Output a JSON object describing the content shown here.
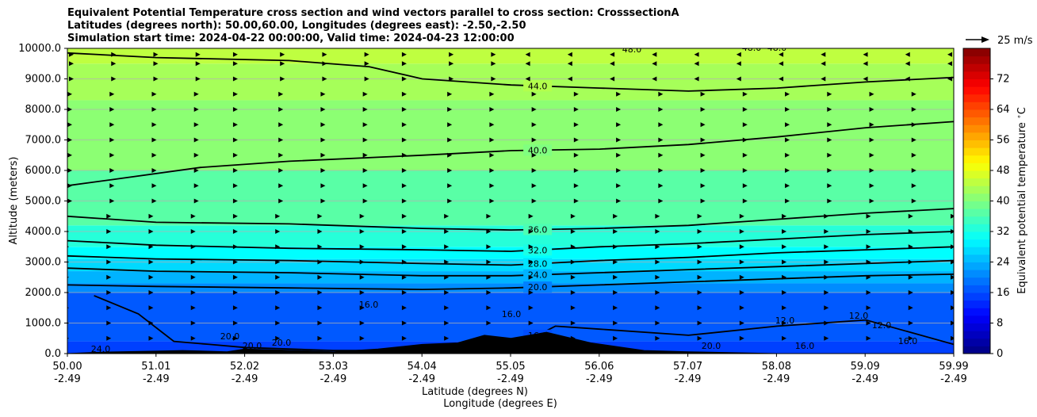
{
  "chart_data": {
    "type": "contour-cross-section",
    "title_lines": [
      "Equivalent Potential Temperature cross section and wind vectors parallel to cross section: CrosssectionA",
      "Latitudes (degrees north): 50.00,60.00, Longitudes (degrees east): -2.50,-2.50",
      "Simulation start time: 2024-04-22 00:00:00, Valid time: 2024-04-23 12:00:00"
    ],
    "ylabel": "Altitude (meters)",
    "xlabel_lat": "Latitude (degrees N)",
    "xlabel_lon": "Longitude (degrees E)",
    "ylim": [
      0,
      10000
    ],
    "xlim": [
      50.0,
      59.99
    ],
    "yticks": [
      "0.0",
      "1000.0",
      "2000.0",
      "3000.0",
      "4000.0",
      "5000.0",
      "6000.0",
      "7000.0",
      "8000.0",
      "9000.0",
      "10000.0"
    ],
    "xticks": [
      {
        "lat": "50.00",
        "lon": "-2.49"
      },
      {
        "lat": "51.01",
        "lon": "-2.49"
      },
      {
        "lat": "52.02",
        "lon": "-2.49"
      },
      {
        "lat": "53.03",
        "lon": "-2.49"
      },
      {
        "lat": "54.04",
        "lon": "-2.49"
      },
      {
        "lat": "55.05",
        "lon": "-2.49"
      },
      {
        "lat": "56.06",
        "lon": "-2.49"
      },
      {
        "lat": "57.07",
        "lon": "-2.49"
      },
      {
        "lat": "58.08",
        "lon": "-2.49"
      },
      {
        "lat": "59.09",
        "lon": "-2.49"
      },
      {
        "lat": "59.99",
        "lon": "-2.49"
      }
    ],
    "colorbar": {
      "label": "Equivalent potential temperature $^\\circ$C",
      "ticks": [
        "0",
        "8",
        "16",
        "24",
        "32",
        "40",
        "48",
        "56",
        "64",
        "72"
      ],
      "min": 0,
      "max": 80
    },
    "filled_bands": [
      {
        "from": 0,
        "to": 400,
        "value": 15
      },
      {
        "from": 400,
        "to": 2000,
        "value": 17
      },
      {
        "from": 2000,
        "to": 2300,
        "value": 21
      },
      {
        "from": 2300,
        "to": 2700,
        "value": 24
      },
      {
        "from": 2700,
        "to": 3100,
        "value": 27
      },
      {
        "from": 3100,
        "to": 3500,
        "value": 30
      },
      {
        "from": 3500,
        "to": 4200,
        "value": 33
      },
      {
        "from": 4200,
        "to": 6000,
        "value": 37
      },
      {
        "from": 6000,
        "to": 8300,
        "value": 41
      },
      {
        "from": 8300,
        "to": 9500,
        "value": 43
      },
      {
        "from": 9500,
        "to": 10000,
        "value": 45
      }
    ],
    "contours": [
      {
        "level": 44,
        "label": "44.0",
        "points": [
          [
            50.0,
            9850
          ],
          [
            51.0,
            9700
          ],
          [
            52.5,
            9600
          ],
          [
            53.4,
            9400
          ],
          [
            54.0,
            9000
          ],
          [
            55.0,
            8800
          ],
          [
            56.0,
            8700
          ],
          [
            57.0,
            8600
          ],
          [
            58.0,
            8700
          ],
          [
            59.0,
            8900
          ],
          [
            59.99,
            9050
          ]
        ]
      },
      {
        "level": 40,
        "label": "40.0",
        "points": [
          [
            50.0,
            5500
          ],
          [
            50.5,
            5700
          ],
          [
            51.5,
            6100
          ],
          [
            52.5,
            6300
          ],
          [
            54.0,
            6500
          ],
          [
            55.0,
            6650
          ],
          [
            56.0,
            6700
          ],
          [
            57.0,
            6850
          ],
          [
            58.0,
            7100
          ],
          [
            59.0,
            7400
          ],
          [
            59.99,
            7600
          ]
        ]
      },
      {
        "level": 36,
        "label": "36.0",
        "points": [
          [
            50.0,
            4500
          ],
          [
            51.0,
            4300
          ],
          [
            52.5,
            4250
          ],
          [
            54.0,
            4100
          ],
          [
            55.0,
            4050
          ],
          [
            56.0,
            4100
          ],
          [
            57.0,
            4200
          ],
          [
            58.0,
            4400
          ],
          [
            59.0,
            4600
          ],
          [
            59.99,
            4750
          ]
        ]
      },
      {
        "level": 32,
        "label": "32.0",
        "points": [
          [
            50.0,
            3700
          ],
          [
            51.0,
            3550
          ],
          [
            52.5,
            3450
          ],
          [
            54.0,
            3400
          ],
          [
            55.0,
            3350
          ],
          [
            56.0,
            3500
          ],
          [
            57.0,
            3600
          ],
          [
            58.0,
            3750
          ],
          [
            59.0,
            3900
          ],
          [
            59.99,
            4000
          ]
        ]
      },
      {
        "level": 28,
        "label": "28.0",
        "points": [
          [
            50.0,
            3200
          ],
          [
            51.0,
            3100
          ],
          [
            52.5,
            3050
          ],
          [
            54.0,
            2950
          ],
          [
            55.0,
            2900
          ],
          [
            56.0,
            3050
          ],
          [
            57.0,
            3150
          ],
          [
            58.0,
            3300
          ],
          [
            59.0,
            3400
          ],
          [
            59.99,
            3500
          ]
        ]
      },
      {
        "level": 24,
        "label": "24.0",
        "points": [
          [
            50.0,
            2800
          ],
          [
            51.0,
            2700
          ],
          [
            52.5,
            2650
          ],
          [
            54.0,
            2550
          ],
          [
            55.0,
            2550
          ],
          [
            56.0,
            2650
          ],
          [
            57.0,
            2750
          ],
          [
            58.0,
            2850
          ],
          [
            59.0,
            2950
          ],
          [
            59.99,
            3050
          ]
        ]
      },
      {
        "level": 20,
        "label": "20.0",
        "points": [
          [
            50.0,
            2250
          ],
          [
            51.0,
            2200
          ],
          [
            52.5,
            2150
          ],
          [
            54.0,
            2100
          ],
          [
            55.0,
            2150
          ],
          [
            56.0,
            2250
          ],
          [
            57.0,
            2350
          ],
          [
            58.0,
            2450
          ],
          [
            59.0,
            2550
          ],
          [
            59.99,
            2600
          ]
        ]
      },
      {
        "level": 16,
        "label": "16.0",
        "points": [
          [
            50.3,
            1900
          ],
          [
            50.8,
            1300
          ],
          [
            51.2,
            400
          ],
          [
            51.6,
            300
          ],
          [
            52.0,
            200
          ],
          [
            53.0,
            100
          ],
          [
            54.0,
            100
          ],
          [
            55.0,
            150
          ],
          [
            55.5,
            900
          ],
          [
            56.0,
            800
          ],
          [
            57.0,
            600
          ],
          [
            58.0,
            900
          ],
          [
            59.0,
            1100
          ],
          [
            59.99,
            300
          ]
        ]
      }
    ],
    "contour_labels_extra": [
      "48.0",
      "48.0",
      "48.0",
      "16.0",
      "12.0",
      "12.0",
      "12.0",
      "16.0",
      "16.0",
      "20.0",
      "20.0",
      "24.0",
      "20.0",
      "20.0",
      "16.0"
    ],
    "wind_reference": "25 m/s",
    "wind_rows": [
      9800,
      9500,
      9000,
      8500,
      8000,
      7500,
      7000,
      6500,
      6000,
      5500,
      5000,
      4500,
      4000,
      3500,
      3000,
      2500,
      2000,
      1500,
      1000,
      500
    ],
    "terrain": [
      [
        50.0,
        0
      ],
      [
        50.4,
        50
      ],
      [
        51.0,
        80
      ],
      [
        51.3,
        100
      ],
      [
        51.8,
        60
      ],
      [
        52.0,
        150
      ],
      [
        52.6,
        100
      ],
      [
        53.0,
        60
      ],
      [
        53.5,
        150
      ],
      [
        54.0,
        300
      ],
      [
        54.4,
        350
      ],
      [
        54.7,
        600
      ],
      [
        55.0,
        500
      ],
      [
        55.4,
        700
      ],
      [
        55.9,
        350
      ],
      [
        56.5,
        100
      ],
      [
        57.0,
        60
      ],
      [
        58.0,
        0
      ],
      [
        59.99,
        0
      ]
    ]
  }
}
